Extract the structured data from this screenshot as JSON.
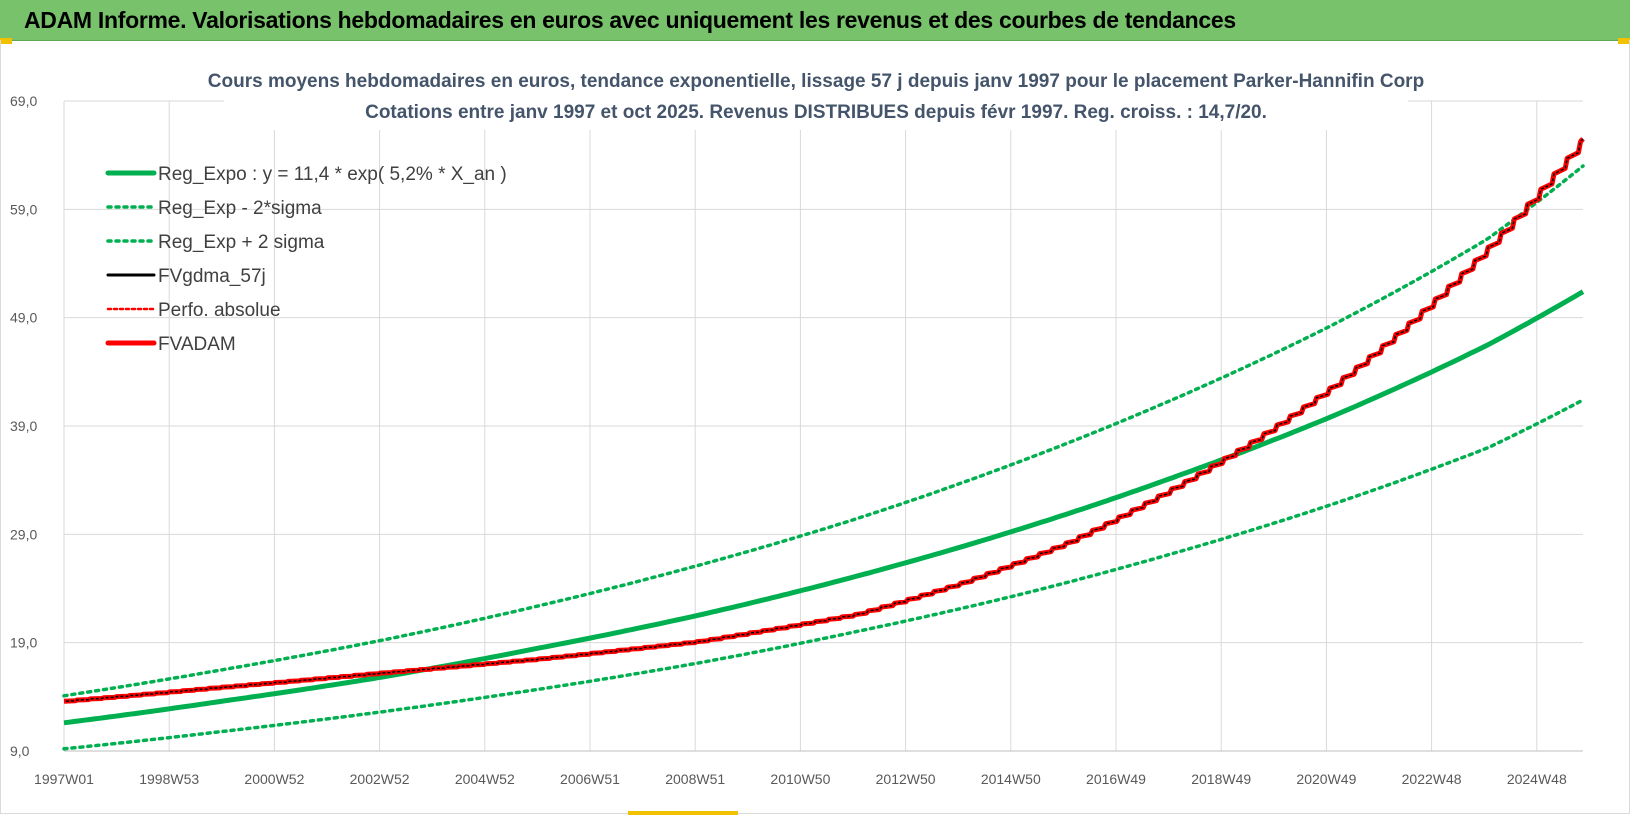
{
  "banner": {
    "title": "ADAM Informe. Valorisations hebdomadaires en euros avec uniquement les revenus et des courbes de tendances"
  },
  "colors": {
    "banner_bg": "#77c26b",
    "reg_expo": "#00b050",
    "fvgdma": "#000000",
    "fvadam": "#ff0000",
    "grid": "#d9d9d9"
  },
  "chart_data": {
    "type": "line",
    "title_line1": "Cours moyens hebdomadaires en euros, tendance exponentielle, lissage 57 j depuis janv 1997 pour le placement Parker-Hannifin Corp",
    "title_line2": "Cotations entre janv 1997 et oct 2025. Revenus DISTRIBUES depuis févr 1997. Reg. croiss. : 14,7/20.",
    "x_tick_labels": [
      "1997W01",
      "1998W53",
      "2000W52",
      "2002W52",
      "2004W52",
      "2006W51",
      "2008W51",
      "2010W50",
      "2012W50",
      "2014W50",
      "2016W49",
      "2018W49",
      "2020W49",
      "2022W48",
      "2024W48"
    ],
    "x_range_years": [
      1997.0,
      2025.8
    ],
    "ylim": [
      9.0,
      69.0
    ],
    "y_ticks": [
      "9,0",
      "19,0",
      "29,0",
      "39,0",
      "49,0",
      "59,0",
      "69,0"
    ],
    "grid": true,
    "legend_position": "top-left",
    "series": [
      {
        "name": "Reg_Expo : y = 11,4 * exp( 5,2% *  X_an )",
        "style": "solid",
        "color": "#00b050",
        "x": [
          1997,
          2000,
          2003,
          2006,
          2009,
          2012,
          2015,
          2018,
          2021,
          2024,
          2025.8
        ],
        "values": [
          11.6,
          13.6,
          15.8,
          18.5,
          21.5,
          25.1,
          29.3,
          34.2,
          39.8,
          46.5,
          51.4
        ]
      },
      {
        "name": "Reg_Exp - 2*sigma",
        "style": "dotted",
        "color": "#00b050",
        "x": [
          1997,
          2000,
          2003,
          2006,
          2009,
          2012,
          2015,
          2018,
          2021,
          2024,
          2025.8
        ],
        "values": [
          9.2,
          10.8,
          12.6,
          14.7,
          17.1,
          20.0,
          23.3,
          27.2,
          31.7,
          37.0,
          41.4
        ]
      },
      {
        "name": "Reg_Exp + 2 sigma",
        "style": "dotted",
        "color": "#00b050",
        "x": [
          1997,
          2000,
          2003,
          2006,
          2009,
          2012,
          2015,
          2018,
          2021,
          2024,
          2025.8
        ],
        "values": [
          14.1,
          16.5,
          19.2,
          22.4,
          26.1,
          30.4,
          35.5,
          41.4,
          48.2,
          56.3,
          63.0
        ]
      },
      {
        "name": "FVgdma_57j",
        "style": "solid",
        "color": "#000000",
        "x": [
          1997,
          2000,
          2003,
          2006,
          2009,
          2012,
          2014,
          2016,
          2018,
          2019.5,
          2021,
          2022.5,
          2024,
          2025.8
        ],
        "values": [
          13.6,
          14.9,
          16.2,
          17.5,
          19.1,
          21.6,
          24.5,
          28.2,
          33.2,
          37.5,
          42.5,
          48.5,
          55.5,
          65.5
        ]
      },
      {
        "name": "Perfo. absolue",
        "style": "dotted",
        "color": "#ff0000",
        "x": [
          1997,
          2000,
          2003,
          2006,
          2009,
          2012,
          2014,
          2016,
          2018,
          2019.5,
          2021,
          2022.5,
          2024,
          2025.8
        ],
        "values": [
          13.6,
          14.9,
          16.2,
          17.5,
          19.1,
          21.6,
          24.5,
          28.2,
          33.2,
          37.5,
          42.5,
          48.5,
          55.5,
          65.5
        ]
      },
      {
        "name": "FVADAM",
        "style": "solid",
        "color": "#ff0000",
        "x": [
          1997,
          2000,
          2003,
          2006,
          2009,
          2012,
          2014,
          2016,
          2018,
          2019.5,
          2021,
          2022.5,
          2024,
          2025.8
        ],
        "values": [
          13.6,
          14.9,
          16.2,
          17.5,
          19.1,
          21.6,
          24.5,
          28.2,
          33.2,
          37.5,
          42.5,
          48.5,
          55.5,
          65.5
        ]
      }
    ]
  }
}
